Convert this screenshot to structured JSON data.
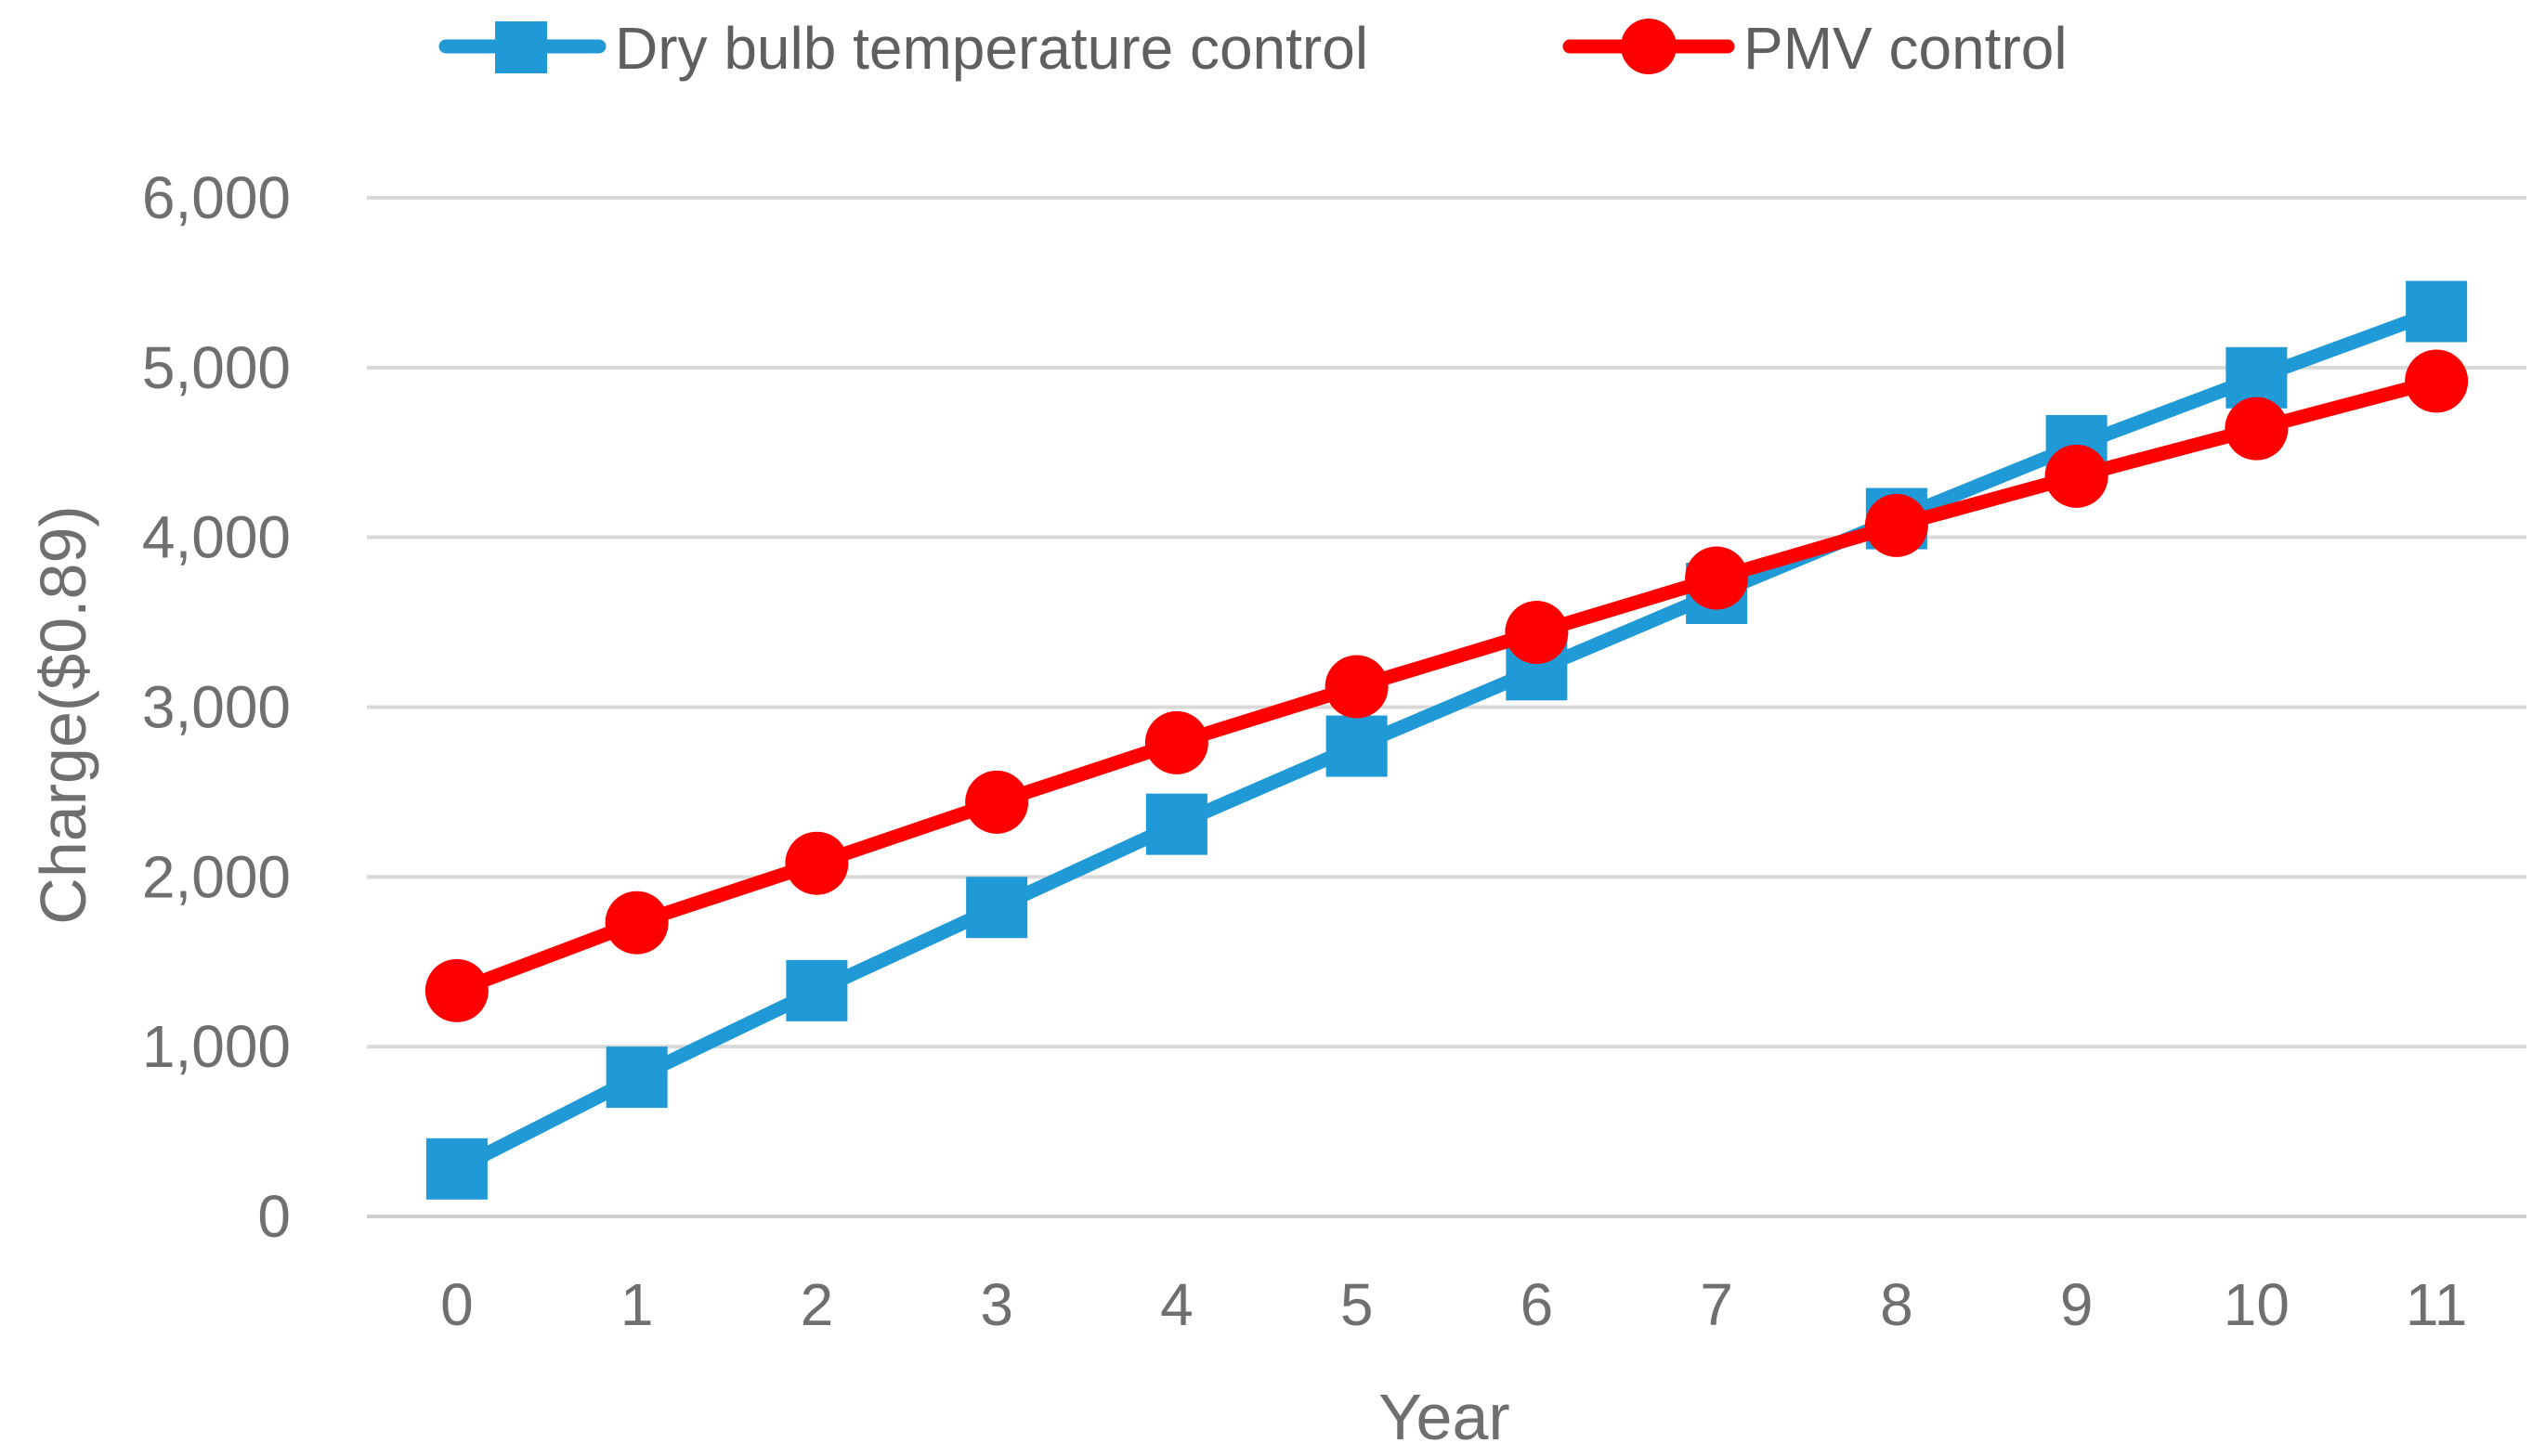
{
  "chart_data": {
    "type": "line",
    "title": "",
    "xlabel": "Year",
    "ylabel": "Charge($0.89)",
    "categories": [
      "0",
      "1",
      "2",
      "3",
      "4",
      "5",
      "6",
      "7",
      "8",
      "9",
      "10",
      "11"
    ],
    "ylim": [
      0,
      6000
    ],
    "yticks": [
      0,
      1000,
      2000,
      3000,
      4000,
      5000,
      6000
    ],
    "ytick_labels": [
      "0",
      "1,000",
      "2,000",
      "3,000",
      "4,000",
      "5,000",
      "6,000"
    ],
    "grid": true,
    "legend_position": "top",
    "series": [
      {
        "name": "Dry bulb temperature control",
        "color": "#1f9ad6",
        "marker": "square",
        "values": [
          280,
          820,
          1330,
          1820,
          2310,
          2770,
          3220,
          3670,
          4110,
          4540,
          4940,
          5330
        ]
      },
      {
        "name": "PMV control",
        "color": "#ff0000",
        "marker": "circle",
        "values": [
          1330,
          1730,
          2080,
          2440,
          2790,
          3120,
          3440,
          3760,
          4070,
          4360,
          4640,
          4920
        ]
      }
    ]
  }
}
